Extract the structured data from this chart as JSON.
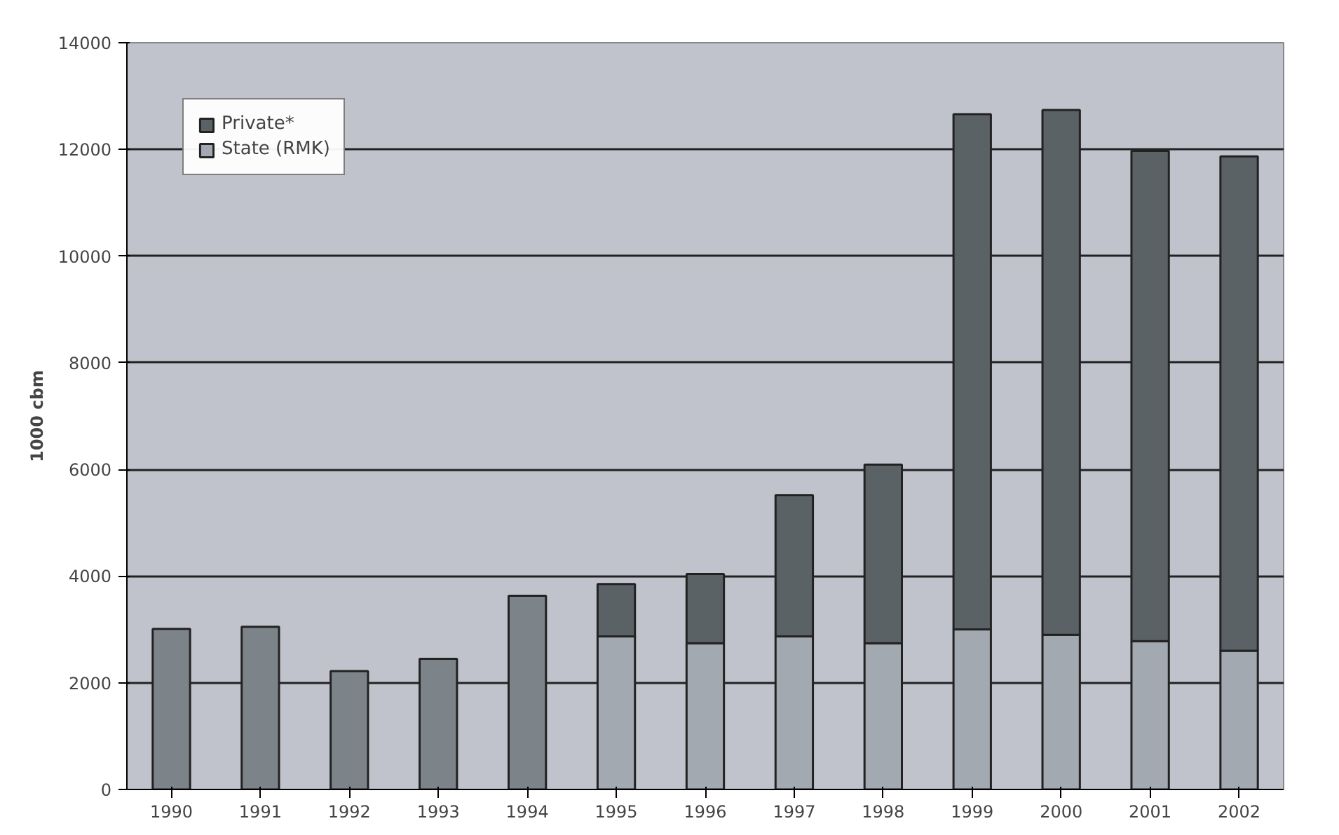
{
  "chart_data": {
    "type": "bar",
    "stacked": true,
    "ylabel": "1000 cbm",
    "categories": [
      "1990",
      "1991",
      "1992",
      "1993",
      "1994",
      "1995",
      "1996",
      "1997",
      "1998",
      "1999",
      "2000",
      "2001",
      "2002"
    ],
    "series": [
      {
        "color": "#7c8389",
        "values": [
          3010,
          3050,
          2220,
          2450,
          3630,
          null,
          null,
          null,
          null,
          null,
          null,
          null,
          null
        ]
      },
      {
        "name": "State (RMK)",
        "color": "#a3a9b0",
        "values": [
          null,
          null,
          null,
          null,
          null,
          2870,
          2740,
          2870,
          2740,
          3000,
          2900,
          2780,
          2600
        ]
      },
      {
        "name": "Private*",
        "color": "#5b6266",
        "values": [
          null,
          null,
          null,
          null,
          null,
          980,
          1300,
          2650,
          3350,
          9660,
          9840,
          9190,
          9270
        ]
      }
    ],
    "ylim": [
      0,
      14000
    ],
    "yticks": [
      0,
      2000,
      4000,
      6000,
      8000,
      10000,
      12000,
      14000
    ],
    "grid": "y",
    "legend": "top left"
  }
}
